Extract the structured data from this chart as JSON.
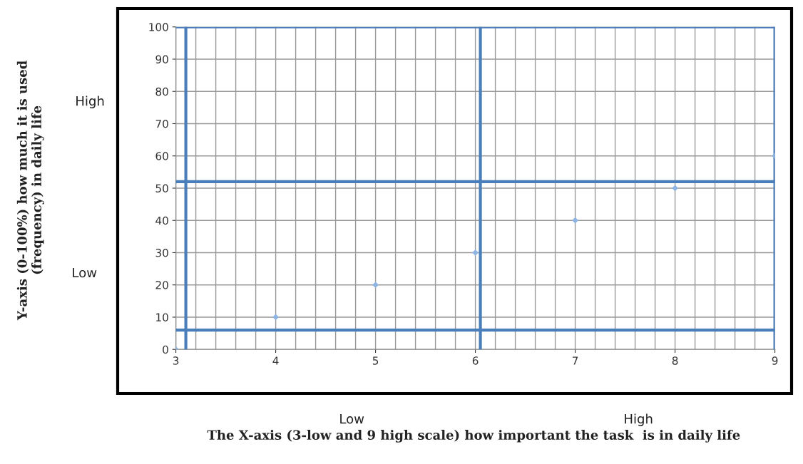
{
  "chart_data": {
    "type": "scatter",
    "x": [
      3,
      4,
      5,
      6,
      7,
      8,
      9
    ],
    "series": [
      {
        "color": "#8eb4e3",
        "values": [
          0,
          10,
          20,
          30,
          40,
          50,
          60
        ]
      }
    ],
    "marker": "diamond",
    "xlim": [
      3,
      9
    ],
    "xticks": [
      3,
      4,
      5,
      6,
      7,
      8,
      9
    ],
    "ylim": [
      0,
      100
    ],
    "yticks": [
      0,
      10,
      20,
      30,
      40,
      50,
      60,
      70,
      80,
      90,
      100
    ],
    "grid": true,
    "ref_lines": [
      {
        "axis": "y",
        "value": 100,
        "color": "#4a7ebb"
      },
      {
        "axis": "y",
        "value": 52,
        "color": "#4a7ebb"
      },
      {
        "axis": "y",
        "value": 6,
        "color": "#4a7ebb"
      },
      {
        "axis": "x",
        "value": 3.1,
        "color": "#4a7ebb"
      },
      {
        "axis": "x",
        "value": 6.05,
        "color": "#4a7ebb"
      },
      {
        "axis": "x",
        "value": 9,
        "color": "#4a7ebb"
      }
    ],
    "annotations": [
      "High",
      "Low",
      "Low",
      "High",
      "The X-axis (3-low and 9 high scale) how important the task  is in daily life",
      "Y-axis (0-100%) how much it is used\n(frequency) in daily life"
    ]
  }
}
